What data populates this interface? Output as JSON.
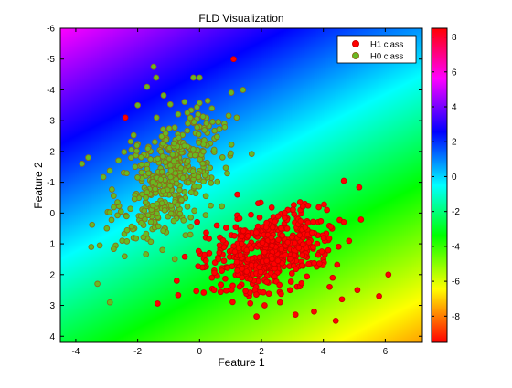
{
  "chart_data": {
    "type": "scatter",
    "title": "FLD Visualization",
    "xlabel": "Feature 1",
    "ylabel": "Feature 2",
    "xlim": [
      -4.5,
      7.2
    ],
    "ylim": [
      -6,
      4.2
    ],
    "y_reversed": true,
    "xticks": [
      -4,
      -2,
      0,
      2,
      4,
      6
    ],
    "yticks": [
      -6,
      -5,
      -4,
      -3,
      -2,
      -1,
      0,
      1,
      2,
      3,
      4
    ],
    "background": "diagonal hsv gradient of the discriminant value",
    "legend_position": "top-right",
    "series": [
      {
        "name": "H1 class",
        "color": "#ff0000",
        "edge_color": "#cc0000",
        "center": [
          2.3,
          1.2
        ],
        "count": 520,
        "points": [
          [
            -2.4,
            -3.1
          ],
          [
            1.1,
            -5.0
          ],
          [
            4.4,
            3.5
          ],
          [
            3.1,
            3.3
          ],
          [
            5.8,
            2.7
          ],
          [
            6.1,
            2.0
          ],
          [
            3.0,
            -0.1
          ],
          [
            3.4,
            -0.3
          ],
          [
            4.2,
            2.4
          ],
          [
            4.6,
            2.8
          ],
          [
            5.1,
            2.5
          ],
          [
            2.1,
            3.0
          ],
          [
            1.6,
            2.7
          ],
          [
            0.4,
            2.1
          ],
          [
            0.2,
            0.8
          ],
          [
            3.8,
            1.0
          ],
          [
            4.0,
            1.5
          ],
          [
            2.6,
            2.9
          ],
          [
            3.7,
            3.2
          ],
          [
            4.3,
            2.1
          ]
        ]
      },
      {
        "name": "H0 class",
        "color": "#66bb22",
        "edge_color": "#8a6d1a",
        "center": [
          -1.0,
          -1.2
        ],
        "count": 440,
        "points": [
          [
            -0.2,
            -4.4
          ],
          [
            0.0,
            -4.4
          ],
          [
            1.4,
            -4.0
          ],
          [
            -1.4,
            -4.4
          ],
          [
            -1.7,
            -4.1
          ],
          [
            -3.8,
            -1.6
          ],
          [
            -3.6,
            -1.8
          ],
          [
            -3.5,
            1.1
          ],
          [
            -3.3,
            2.3
          ],
          [
            -2.9,
            2.9
          ],
          [
            -0.2,
            -3.0
          ],
          [
            0.4,
            -3.4
          ],
          [
            0.8,
            -2.9
          ],
          [
            -1.2,
            1.2
          ],
          [
            -0.8,
            1.5
          ],
          [
            -2.5,
            0.9
          ],
          [
            -3.0,
            0.5
          ],
          [
            -2.0,
            -3.5
          ],
          [
            1.2,
            -3.1
          ],
          [
            -0.3,
            0.7
          ]
        ]
      }
    ],
    "colorbar": {
      "range": [
        -9.5,
        8.5
      ],
      "ticks": [
        8,
        6,
        4,
        2,
        0,
        -2,
        -4,
        -6,
        -8
      ],
      "colormap": "hsv"
    }
  }
}
